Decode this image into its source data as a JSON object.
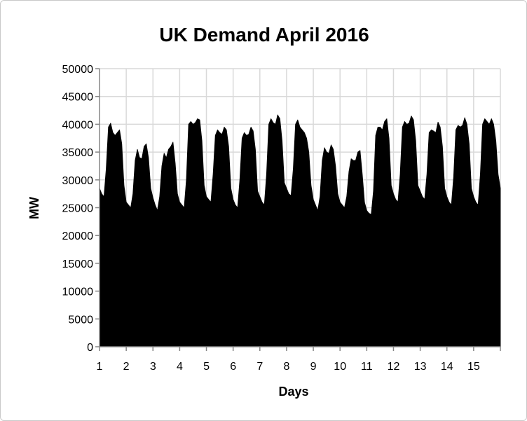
{
  "chart_data": {
    "type": "area",
    "title": "UK Demand April 2016",
    "xlabel": "Days",
    "ylabel": "MW",
    "xlim": [
      1,
      16
    ],
    "ylim": [
      0,
      50000
    ],
    "x_ticks": [
      1,
      2,
      3,
      4,
      5,
      6,
      7,
      8,
      9,
      10,
      11,
      12,
      13,
      14,
      15
    ],
    "y_ticks": [
      0,
      5000,
      10000,
      15000,
      20000,
      25000,
      30000,
      35000,
      40000,
      45000,
      50000
    ],
    "grid": true,
    "legend": "none",
    "fill_color": "#000000",
    "x_start": 1,
    "x_step_hours": 2,
    "values": [
      28500,
      27500,
      27000,
      32000,
      39500,
      40200,
      38500,
      38000,
      38500,
      39000,
      36500,
      29000,
      26000,
      25500,
      25000,
      27500,
      33500,
      35500,
      34000,
      33800,
      36000,
      36500,
      34000,
      28500,
      26800,
      25500,
      24500,
      27000,
      32500,
      34800,
      34000,
      35500,
      36000,
      36800,
      33000,
      27500,
      26000,
      25500,
      25000,
      30000,
      40000,
      40500,
      40000,
      40300,
      41000,
      40800,
      37000,
      29000,
      27000,
      26500,
      26000,
      31000,
      38000,
      39000,
      38500,
      38200,
      39500,
      39000,
      36000,
      28500,
      26500,
      25500,
      25000,
      30000,
      37500,
      38500,
      38000,
      38200,
      39500,
      38800,
      35500,
      28000,
      27000,
      26000,
      25500,
      31000,
      40000,
      41000,
      40300,
      40000,
      41700,
      41000,
      37000,
      29500,
      28500,
      27500,
      27200,
      32000,
      40000,
      40800,
      39500,
      39000,
      38500,
      37500,
      35000,
      29000,
      26500,
      25500,
      24500,
      27000,
      33500,
      35800,
      35000,
      34800,
      36300,
      35500,
      32500,
      27500,
      26000,
      25500,
      25000,
      27000,
      31500,
      33800,
      33500,
      33500,
      35000,
      35300,
      31000,
      26000,
      24500,
      24000,
      23800,
      28000,
      38000,
      39500,
      39500,
      39000,
      40500,
      41000,
      37500,
      29000,
      27500,
      26500,
      26000,
      31000,
      39500,
      40500,
      40000,
      40200,
      41500,
      40800,
      37000,
      29000,
      28000,
      27000,
      26500,
      31000,
      38500,
      39000,
      38800,
      38500,
      40400,
      39500,
      36000,
      28500,
      27000,
      26000,
      25500,
      30500,
      39000,
      39800,
      39500,
      39800,
      41200,
      40000,
      36500,
      28500,
      27000,
      26000,
      25500,
      31000,
      40000,
      41000,
      40500,
      40000,
      41000,
      40000,
      37000,
      31000,
      28500
    ]
  }
}
